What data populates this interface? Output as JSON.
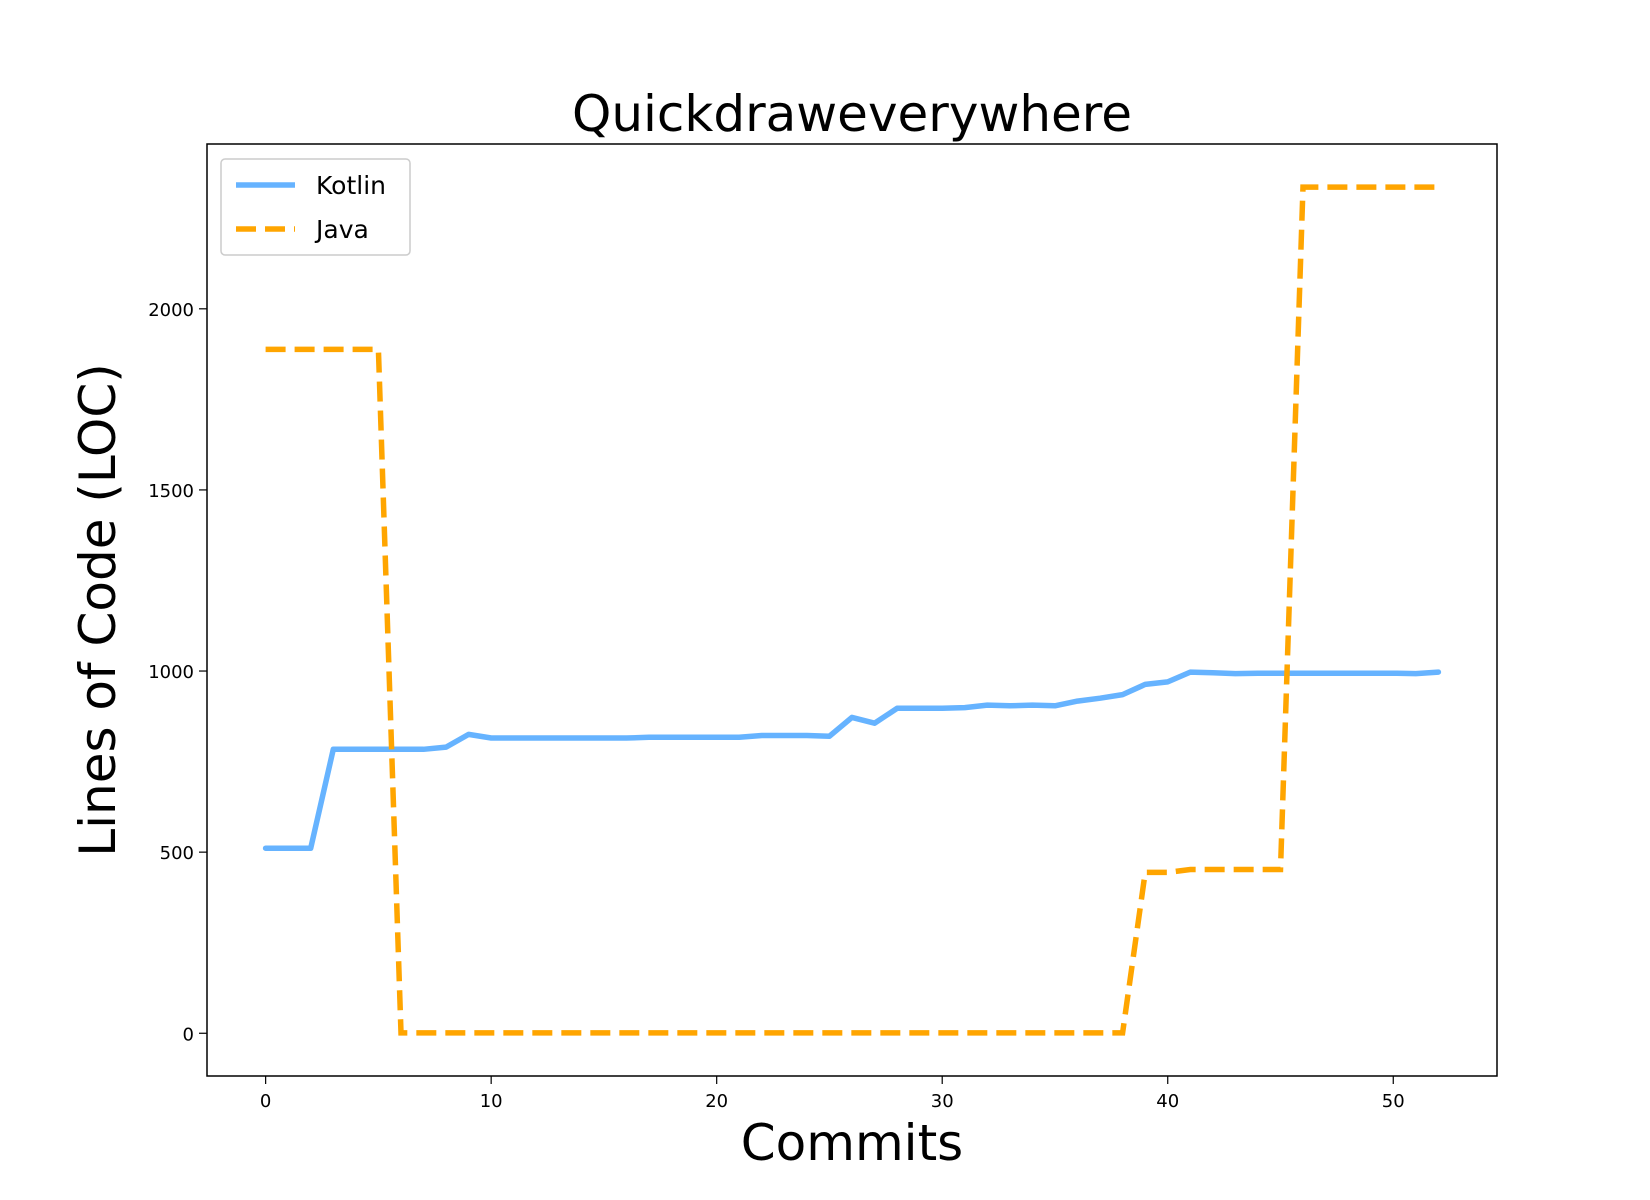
{
  "chart_data": {
    "type": "line",
    "title": "Quickdraweverywhere",
    "xlabel": "Commits",
    "ylabel": "Lines of Code (LOC)",
    "xlim": [
      -2.6,
      54.6
    ],
    "ylim": [
      -118,
      2455
    ],
    "xticks": [
      0,
      10,
      20,
      30,
      40,
      50
    ],
    "yticks": [
      0,
      500,
      1000,
      1500,
      2000
    ],
    "grid": false,
    "legend_position": "upper-left",
    "series": [
      {
        "name": "Kotlin",
        "color": "#66b3ff",
        "style": "solid",
        "x": [
          0,
          1,
          2,
          3,
          4,
          5,
          6,
          7,
          8,
          9,
          10,
          11,
          12,
          13,
          14,
          15,
          16,
          17,
          18,
          19,
          20,
          21,
          22,
          23,
          24,
          25,
          26,
          27,
          28,
          29,
          30,
          31,
          32,
          33,
          34,
          35,
          36,
          37,
          38,
          39,
          40,
          41,
          42,
          43,
          44,
          45,
          46,
          47,
          48,
          49,
          50,
          51,
          52
        ],
        "values": [
          511,
          511,
          511,
          784,
          784,
          784,
          784,
          784,
          790,
          825,
          815,
          815,
          815,
          815,
          815,
          815,
          815,
          817,
          817,
          817,
          817,
          817,
          822,
          822,
          822,
          820,
          872,
          856,
          897,
          897,
          897,
          899,
          906,
          904,
          906,
          904,
          917,
          925,
          935,
          963,
          970,
          997,
          995,
          993,
          994,
          994,
          994,
          994,
          994,
          994,
          994,
          993,
          997
        ]
      },
      {
        "name": "Java",
        "color": "#ffa500",
        "style": "dashed",
        "x": [
          0,
          1,
          2,
          3,
          4,
          5,
          6,
          7,
          8,
          9,
          10,
          11,
          12,
          13,
          14,
          15,
          16,
          17,
          18,
          19,
          20,
          21,
          22,
          23,
          24,
          25,
          26,
          27,
          28,
          29,
          30,
          31,
          32,
          33,
          34,
          35,
          36,
          37,
          38,
          39,
          40,
          41,
          42,
          43,
          44,
          45,
          46,
          47,
          48,
          49,
          50,
          51,
          52
        ],
        "values": [
          1888,
          1888,
          1888,
          1888,
          1888,
          1888,
          1,
          1,
          1,
          1,
          1,
          1,
          1,
          1,
          1,
          1,
          1,
          1,
          1,
          1,
          1,
          1,
          1,
          1,
          1,
          1,
          1,
          1,
          1,
          1,
          1,
          1,
          1,
          1,
          1,
          1,
          1,
          1,
          1,
          444,
          444,
          452,
          452,
          452,
          452,
          452,
          2336,
          2336,
          2336,
          2336,
          2336,
          2336,
          2336
        ]
      }
    ]
  }
}
